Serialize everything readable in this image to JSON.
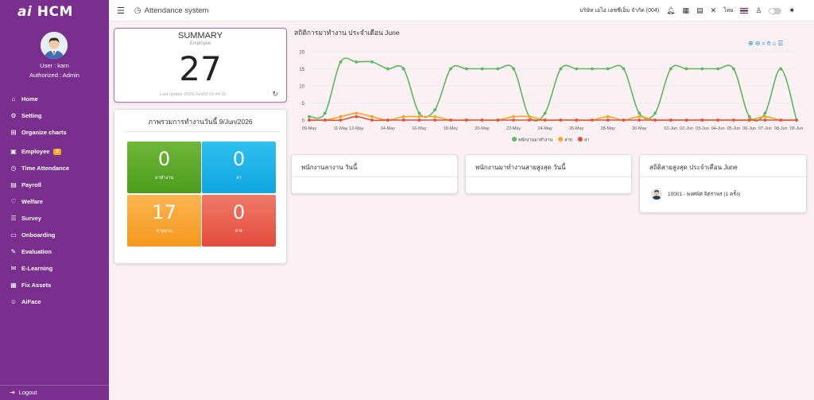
{
  "sidebar": {
    "logo_ai": "ai",
    "logo_text": "HCM",
    "user_line": "User : karn",
    "role_line": "Authorized : Admin",
    "items": [
      {
        "label": "Home",
        "icon": "home-icon"
      },
      {
        "label": "Setting",
        "icon": "gear-icon"
      },
      {
        "label": "Organize charts",
        "icon": "org-chart-icon"
      },
      {
        "label": "Employee",
        "icon": "employee-icon",
        "badge": "2"
      },
      {
        "label": "Time Attendance",
        "icon": "clock-icon"
      },
      {
        "label": "Payroll",
        "icon": "payroll-icon"
      },
      {
        "label": "Welfare",
        "icon": "welfare-icon"
      },
      {
        "label": "Survey",
        "icon": "survey-icon"
      },
      {
        "label": "Onboarding",
        "icon": "onboarding-icon"
      },
      {
        "label": "Evaluation",
        "icon": "evaluation-icon"
      },
      {
        "label": "E-Learning",
        "icon": "elearning-icon"
      },
      {
        "label": "Fix Assets",
        "icon": "assets-icon"
      },
      {
        "label": "AiFace",
        "icon": "face-icon"
      }
    ],
    "logout": "Logout"
  },
  "header": {
    "title": "Attendance system",
    "company": "บริษัท เอไอ เอชซีเอ็ม จำกัด (004)",
    "language": "ไทย"
  },
  "summary": {
    "title": "SUMMARY",
    "subtitle": "Employee",
    "value": "27",
    "last_update": "Last update 2026/Jun/09 01:44:31"
  },
  "overview": {
    "title": "ภาพรวมการทำงานวันนี้ 9/Jun/2026",
    "tiles": [
      {
        "value": "0",
        "label": "มาทำงาน",
        "color": "#5aa82a"
      },
      {
        "value": "0",
        "label": "ลา",
        "color": "#1db2e8"
      },
      {
        "value": "17",
        "label": "ขาดงาน",
        "color": "#f7a535"
      },
      {
        "value": "0",
        "label": "สาย",
        "color": "#e75f4e"
      }
    ]
  },
  "chart_title": "สถิติการมาทำงาน ประจำเดือน June",
  "chart_data": {
    "type": "line",
    "x": [
      "09-May",
      "10-May",
      "11-May",
      "12-May",
      "13-May",
      "14-May",
      "15-May",
      "16-May",
      "17-May",
      "18-May",
      "19-May",
      "20-May",
      "21-May",
      "22-May",
      "23-May",
      "24-May",
      "25-May",
      "26-May",
      "27-May",
      "28-May",
      "29-May",
      "30-May",
      "31-May",
      "01-Jun",
      "02-Jun",
      "03-Jun",
      "04-Jun",
      "05-Jun",
      "06-Jun",
      "07-Jun",
      "08-Jun",
      "09-Jun"
    ],
    "x_tick_labels": [
      "09-May",
      "11-May",
      "12-May",
      "14-May",
      "16-May",
      "18-May",
      "20-May",
      "22-May",
      "24-May",
      "26-May",
      "28-May",
      "30-May",
      "01-Jun",
      "02-Jun",
      "03-Jun",
      "04-Jun",
      "05-Jun",
      "06-Jun",
      "07-Jun",
      "08-Jun",
      "09-Jun"
    ],
    "ylim": [
      0,
      20
    ],
    "yticks": [
      0,
      5,
      10,
      15,
      20
    ],
    "grid": true,
    "legend_position": "bottom",
    "series": [
      {
        "name": "พนักงานมาทำงาน",
        "color": "#5cb85c",
        "values": [
          1,
          2,
          17,
          17,
          17,
          15,
          15,
          2,
          3,
          15,
          15,
          15,
          15,
          15,
          1,
          2,
          15,
          15,
          15,
          15,
          15,
          2,
          2,
          15,
          15,
          15,
          15,
          15,
          1,
          2,
          15,
          0
        ]
      },
      {
        "name": "สาย",
        "color": "#f5a623",
        "values": [
          0,
          0,
          1,
          2,
          1,
          0,
          1,
          1,
          1,
          0,
          0,
          0,
          0,
          1,
          1,
          0,
          0,
          0,
          0,
          1,
          0,
          1,
          0,
          0,
          0,
          0,
          0,
          0,
          0,
          1,
          0,
          0
        ]
      },
      {
        "name": "ลา",
        "color": "#e74c3c",
        "values": [
          0,
          0,
          0,
          1,
          0,
          0,
          0,
          0,
          0,
          0,
          0,
          0,
          0,
          0,
          0,
          0,
          0,
          0,
          0,
          0,
          0,
          0,
          0,
          0,
          0,
          0,
          0,
          0,
          0,
          0,
          0,
          0
        ]
      }
    ]
  },
  "panels": {
    "leave_today": "พนักงานลางาน วันนี้",
    "latest_today": "พนักงานมาทำงานสายสูงสุด วันนี้",
    "late_month": "สถิติสายสูงสุด ประจำเดือน June",
    "late_month_row": "10001 - พงศพัศ จิตราพร (1 ครั้ง)"
  }
}
